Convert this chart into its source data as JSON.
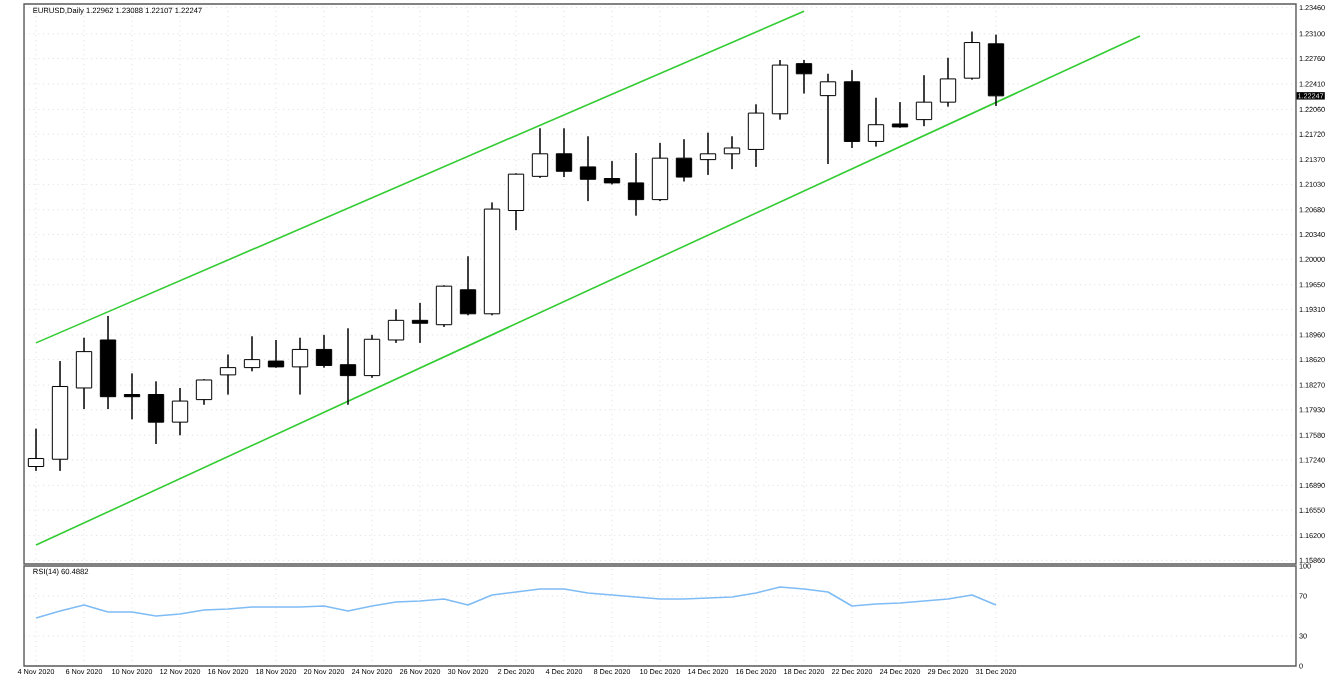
{
  "chart_data": [
    {
      "type": "candlestick",
      "title": "EURUSD,Daily 1.22962 1.23088 1.22107 1.22247",
      "categories": [
        null,
        null,
        null,
        null,
        null,
        null,
        null,
        null,
        null,
        null,
        null,
        null,
        null,
        null,
        null,
        null,
        null,
        null,
        null,
        null,
        null,
        null,
        null,
        null,
        null,
        null,
        null,
        null,
        null,
        null,
        null,
        null,
        null,
        null,
        null,
        null,
        null,
        null,
        null,
        null,
        null,
        null,
        null,
        null,
        null,
        null,
        null,
        null,
        null,
        null,
        null,
        null,
        null
      ],
      "ohlc": [
        [
          1.1715,
          1.1767,
          1.1709,
          1.1726
        ],
        [
          1.1725,
          1.186,
          1.1709,
          1.1825
        ],
        [
          1.1823,
          1.1892,
          1.1794,
          1.1873
        ],
        [
          1.1889,
          1.1922,
          1.1794,
          1.1811
        ],
        [
          1.1814,
          1.1843,
          1.178,
          1.1811
        ],
        [
          1.1814,
          1.1832,
          1.1746,
          1.1776
        ],
        [
          1.1776,
          1.1823,
          1.1758,
          1.1805
        ],
        [
          1.1807,
          1.1835,
          1.18,
          1.1834
        ],
        [
          1.1841,
          1.1869,
          1.1814,
          1.1851
        ],
        [
          1.1851,
          1.1894,
          1.1846,
          1.1862
        ],
        [
          1.186,
          1.1889,
          1.1851,
          1.1852
        ],
        [
          1.1852,
          1.1892,
          1.1814,
          1.1876
        ],
        [
          1.1876,
          1.1896,
          1.1851,
          1.1854
        ],
        [
          1.1855,
          1.1905,
          1.18,
          1.184
        ],
        [
          1.184,
          1.1896,
          1.1837,
          1.189
        ],
        [
          1.1889,
          1.1931,
          1.1885,
          1.1916
        ],
        [
          1.1916,
          1.194,
          1.1885,
          1.1912
        ],
        [
          1.191,
          1.1964,
          1.1907,
          1.1963
        ],
        [
          1.1958,
          1.2004,
          1.1923,
          1.1925
        ],
        [
          1.1925,
          1.2078,
          1.1923,
          1.2069
        ],
        [
          1.2067,
          1.2118,
          1.204,
          1.2117
        ],
        [
          1.2114,
          1.218,
          1.2112,
          1.2145
        ],
        [
          1.2145,
          1.218,
          1.2113,
          1.2121
        ],
        [
          1.2127,
          1.2169,
          1.208,
          1.211
        ],
        [
          1.2111,
          1.2135,
          1.2103,
          1.2105
        ],
        [
          1.2105,
          1.2146,
          1.206,
          1.2082
        ],
        [
          1.2082,
          1.216,
          1.208,
          1.2139
        ],
        [
          1.2139,
          1.2165,
          1.2107,
          1.2113
        ],
        [
          1.2137,
          1.2174,
          1.2116,
          1.2145
        ],
        [
          1.2145,
          1.2169,
          1.2124,
          1.2153
        ],
        [
          1.2151,
          1.2213,
          1.2127,
          1.2201
        ],
        [
          1.22,
          1.2274,
          1.2192,
          1.2267
        ],
        [
          1.2269,
          1.2274,
          1.2228,
          1.2255
        ],
        [
          1.2225,
          1.2255,
          1.2131,
          1.2244
        ],
        [
          1.2244,
          1.226,
          1.2153,
          1.2162
        ],
        [
          1.2162,
          1.2222,
          1.2155,
          1.2185
        ],
        [
          1.2186,
          1.2216,
          1.2181,
          1.2182
        ],
        [
          1.2192,
          1.2253,
          1.2183,
          1.2216
        ],
        [
          1.2216,
          1.2277,
          1.221,
          1.2248
        ],
        [
          1.2249,
          1.2313,
          1.2247,
          1.2298
        ],
        [
          1.22962,
          1.23088,
          1.22107,
          1.22247
        ],
        null,
        null,
        null,
        null,
        null,
        null,
        null,
        null,
        null,
        null,
        null,
        null
      ],
      "series": [
        {
          "type": "line",
          "color": "#33cc33",
          "values": [
            1.1885,
            null,
            null,
            null,
            null,
            null,
            null,
            null,
            null,
            null,
            null,
            null,
            null,
            null,
            null,
            null,
            null,
            null,
            null,
            null,
            null,
            null,
            null,
            null,
            null,
            null,
            null,
            null,
            null,
            null,
            null,
            null,
            1.2341,
            null,
            null,
            null,
            null,
            null,
            null,
            null,
            null,
            null,
            null,
            null,
            null,
            null,
            null,
            null,
            null,
            null,
            null,
            null,
            null
          ]
        },
        {
          "type": "line",
          "color": "#33cc33",
          "values": [
            1.1607,
            null,
            null,
            null,
            null,
            null,
            null,
            null,
            null,
            null,
            null,
            null,
            null,
            null,
            null,
            null,
            null,
            null,
            null,
            null,
            null,
            null,
            null,
            null,
            null,
            null,
            null,
            null,
            null,
            null,
            null,
            null,
            null,
            null,
            null,
            null,
            null,
            null,
            null,
            null,
            null,
            null,
            null,
            null,
            null,
            null,
            1.2307,
            null,
            null,
            null,
            null,
            null,
            null
          ]
        }
      ],
      "annotations": [
        "1.22247"
      ],
      "ylim": [
        1.1581,
        1.2351
      ],
      "yticks": [
        {
          "value": 1.2346,
          "label": "1.23460"
        },
        {
          "value": 1.231,
          "label": "1.23100"
        },
        {
          "value": 1.2276,
          "label": "1.22760"
        },
        {
          "value": 1.2241,
          "label": "1.22410"
        },
        {
          "value": 1.2206,
          "label": "1.22060"
        },
        {
          "value": 1.2172,
          "label": "1.21720"
        },
        {
          "value": 1.2137,
          "label": "1.21370"
        },
        {
          "value": 1.2103,
          "label": "1.21030"
        },
        {
          "value": 1.2068,
          "label": "1.20680"
        },
        {
          "value": 1.2034,
          "label": "1.20340"
        },
        {
          "value": 1.2,
          "label": "1.20000"
        },
        {
          "value": 1.1965,
          "label": "1.19650"
        },
        {
          "value": 1.1931,
          "label": "1.19310"
        },
        {
          "value": 1.1896,
          "label": "1.18960"
        },
        {
          "value": 1.1862,
          "label": "1.18620"
        },
        {
          "value": 1.1827,
          "label": "1.18270"
        },
        {
          "value": 1.1793,
          "label": "1.17930"
        },
        {
          "value": 1.1758,
          "label": "1.17580"
        },
        {
          "value": 1.1724,
          "label": "1.17240"
        },
        {
          "value": 1.1689,
          "label": "1.16890"
        },
        {
          "value": 1.1655,
          "label": "1.16550"
        },
        {
          "value": 1.162,
          "label": "1.16200"
        },
        {
          "value": 1.1586,
          "label": "1.15860"
        }
      ],
      "grid": true,
      "tick_labels": "y"
    },
    {
      "type": "line",
      "title": "RSI(14) 60.4882",
      "categories": [
        "4 Nov 2020",
        null,
        "6 Nov 2020",
        null,
        "10 Nov 2020",
        null,
        "12 Nov 2020",
        null,
        "16 Nov 2020",
        null,
        "18 Nov 2020",
        null,
        "20 Nov 2020",
        null,
        "24 Nov 2020",
        null,
        "26 Nov 2020",
        null,
        "30 Nov 2020",
        null,
        "2 Dec 2020",
        null,
        "4 Dec 2020",
        null,
        "8 Dec 2020",
        null,
        "10 Dec 2020",
        null,
        "14 Dec 2020",
        null,
        "16 Dec 2020",
        null,
        "18 Dec 2020",
        null,
        "22 Dec 2020",
        null,
        "24 Dec 2020",
        null,
        "29 Dec 2020",
        null,
        "31 Dec 2020",
        null,
        null,
        null,
        null,
        null,
        null,
        null,
        null,
        null,
        null,
        null,
        null
      ],
      "series": [
        {
          "color": "#7fbcf5",
          "values": [
            48,
            55,
            61,
            54,
            54,
            50,
            52,
            56,
            57,
            59,
            59,
            59,
            60,
            55,
            60,
            64,
            65,
            67,
            61,
            71,
            74,
            77,
            77,
            73,
            71,
            69,
            67,
            67,
            68,
            69,
            73,
            79,
            77,
            74,
            60,
            62,
            63,
            65,
            67,
            71,
            61,
            null,
            null,
            null,
            null,
            null,
            null,
            null,
            null,
            null,
            null,
            null,
            null
          ]
        }
      ],
      "ylim": [
        0,
        100
      ],
      "yticks": [
        0,
        30,
        70,
        100
      ],
      "grid": true
    }
  ]
}
